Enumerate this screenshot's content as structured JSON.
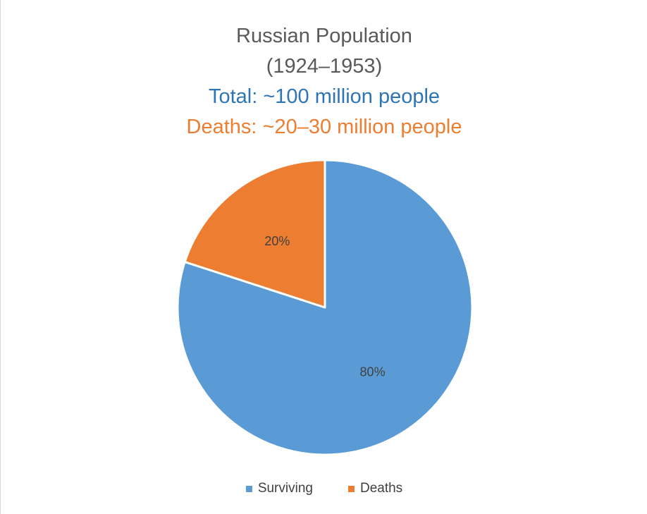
{
  "chart_data": {
    "type": "pie",
    "title": "Russian Population",
    "subtitle": "(1924–1953)",
    "annotations": [
      {
        "text": "Total: ~100 million people",
        "color": "#2e75b6"
      },
      {
        "text": "Deaths: ~20–30 million people",
        "color": "#ed7d31"
      }
    ],
    "categories": [
      "Surviving",
      "Deaths"
    ],
    "values": [
      80,
      20
    ],
    "value_labels": [
      "80%",
      "20%"
    ],
    "colors": [
      "#5b9bd5",
      "#ed7d31"
    ],
    "legend": "bottom"
  }
}
